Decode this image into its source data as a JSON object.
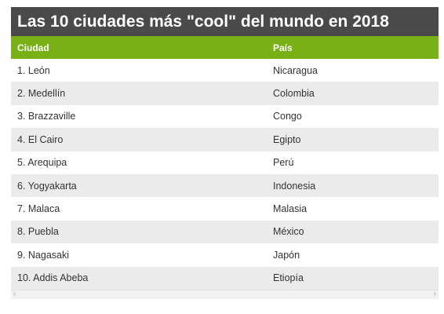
{
  "title": "Las 10 ciudades más \"cool\" del mundo en 2018",
  "headers": {
    "city": "Ciudad",
    "country": "País"
  },
  "rows": [
    {
      "city": "1. León",
      "country": "Nicaragua"
    },
    {
      "city": "2. Medellín",
      "country": "Colombia"
    },
    {
      "city": "3. Brazzaville",
      "country": "Congo"
    },
    {
      "city": "4. El Cairo",
      "country": "Egipto"
    },
    {
      "city": "5. Arequipa",
      "country": "Perú"
    },
    {
      "city": "6. Yogyakarta",
      "country": "Indonesia"
    },
    {
      "city": "7. Malaca",
      "country": "Malasia"
    },
    {
      "city": "8. Puebla",
      "country": "México"
    },
    {
      "city": "9. Nagasaki",
      "country": "Japón"
    },
    {
      "city": "10. Addis Abeba",
      "country": "Etiopía"
    }
  ],
  "scrollbar": {
    "left_icon": "chevron-left-icon",
    "right_icon": "chevron-right-icon"
  },
  "colors": {
    "title_bg": "#4a4a4a",
    "header_bg": "#78b016",
    "alt_row_bg": "#ebebeb"
  }
}
